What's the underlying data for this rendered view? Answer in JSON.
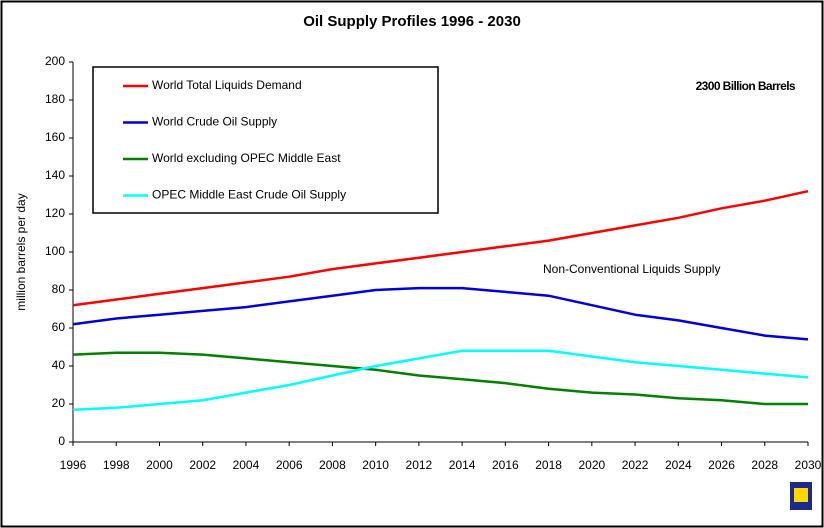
{
  "chart_data": {
    "type": "line",
    "title": "Oil Supply Profiles 1996 - 2030",
    "y_label": "million barrels per day",
    "annotations": [
      "2300 Billion Barrels",
      "Non-Conventional Liquids Supply"
    ],
    "x": [
      1996,
      1998,
      2000,
      2002,
      2004,
      2006,
      2008,
      2010,
      2012,
      2014,
      2016,
      2018,
      2020,
      2022,
      2024,
      2026,
      2028,
      2030
    ],
    "series": [
      {
        "name": "World Total Liquids Demand",
        "color": "#ff0000",
        "values": [
          72,
          75,
          78,
          81,
          84,
          87,
          91,
          94,
          97,
          100,
          103,
          106,
          110,
          114,
          118,
          123,
          127,
          132
        ]
      },
      {
        "name": "World Crude Oil Supply",
        "color": "#0000dd",
        "values": [
          62,
          65,
          67,
          69,
          71,
          74,
          77,
          80,
          81,
          81,
          79,
          77,
          72,
          67,
          64,
          60,
          56,
          54
        ]
      },
      {
        "name": "World excluding OPEC Middle East",
        "color": "#008000",
        "values": [
          46,
          47,
          47,
          46,
          44,
          42,
          40,
          38,
          35,
          33,
          31,
          28,
          26,
          25,
          23,
          22,
          20,
          20
        ]
      },
      {
        "name": "OPEC Middle East Crude Oil Supply",
        "color": "#00ffff",
        "values": [
          17,
          18,
          20,
          22,
          26,
          30,
          35,
          40,
          44,
          48,
          48,
          48,
          45,
          42,
          40,
          38,
          36,
          34
        ]
      }
    ],
    "xlim": [
      1996,
      2030
    ],
    "xticks": [
      1996,
      1998,
      2000,
      2002,
      2004,
      2006,
      2008,
      2010,
      2012,
      2014,
      2016,
      2018,
      2020,
      2022,
      2024,
      2026,
      2028,
      2030
    ],
    "ylim": [
      0,
      200
    ],
    "yticks": [
      0,
      20,
      40,
      60,
      80,
      100,
      120,
      140,
      160,
      180,
      200
    ],
    "legend": "top-left",
    "grid": false
  }
}
